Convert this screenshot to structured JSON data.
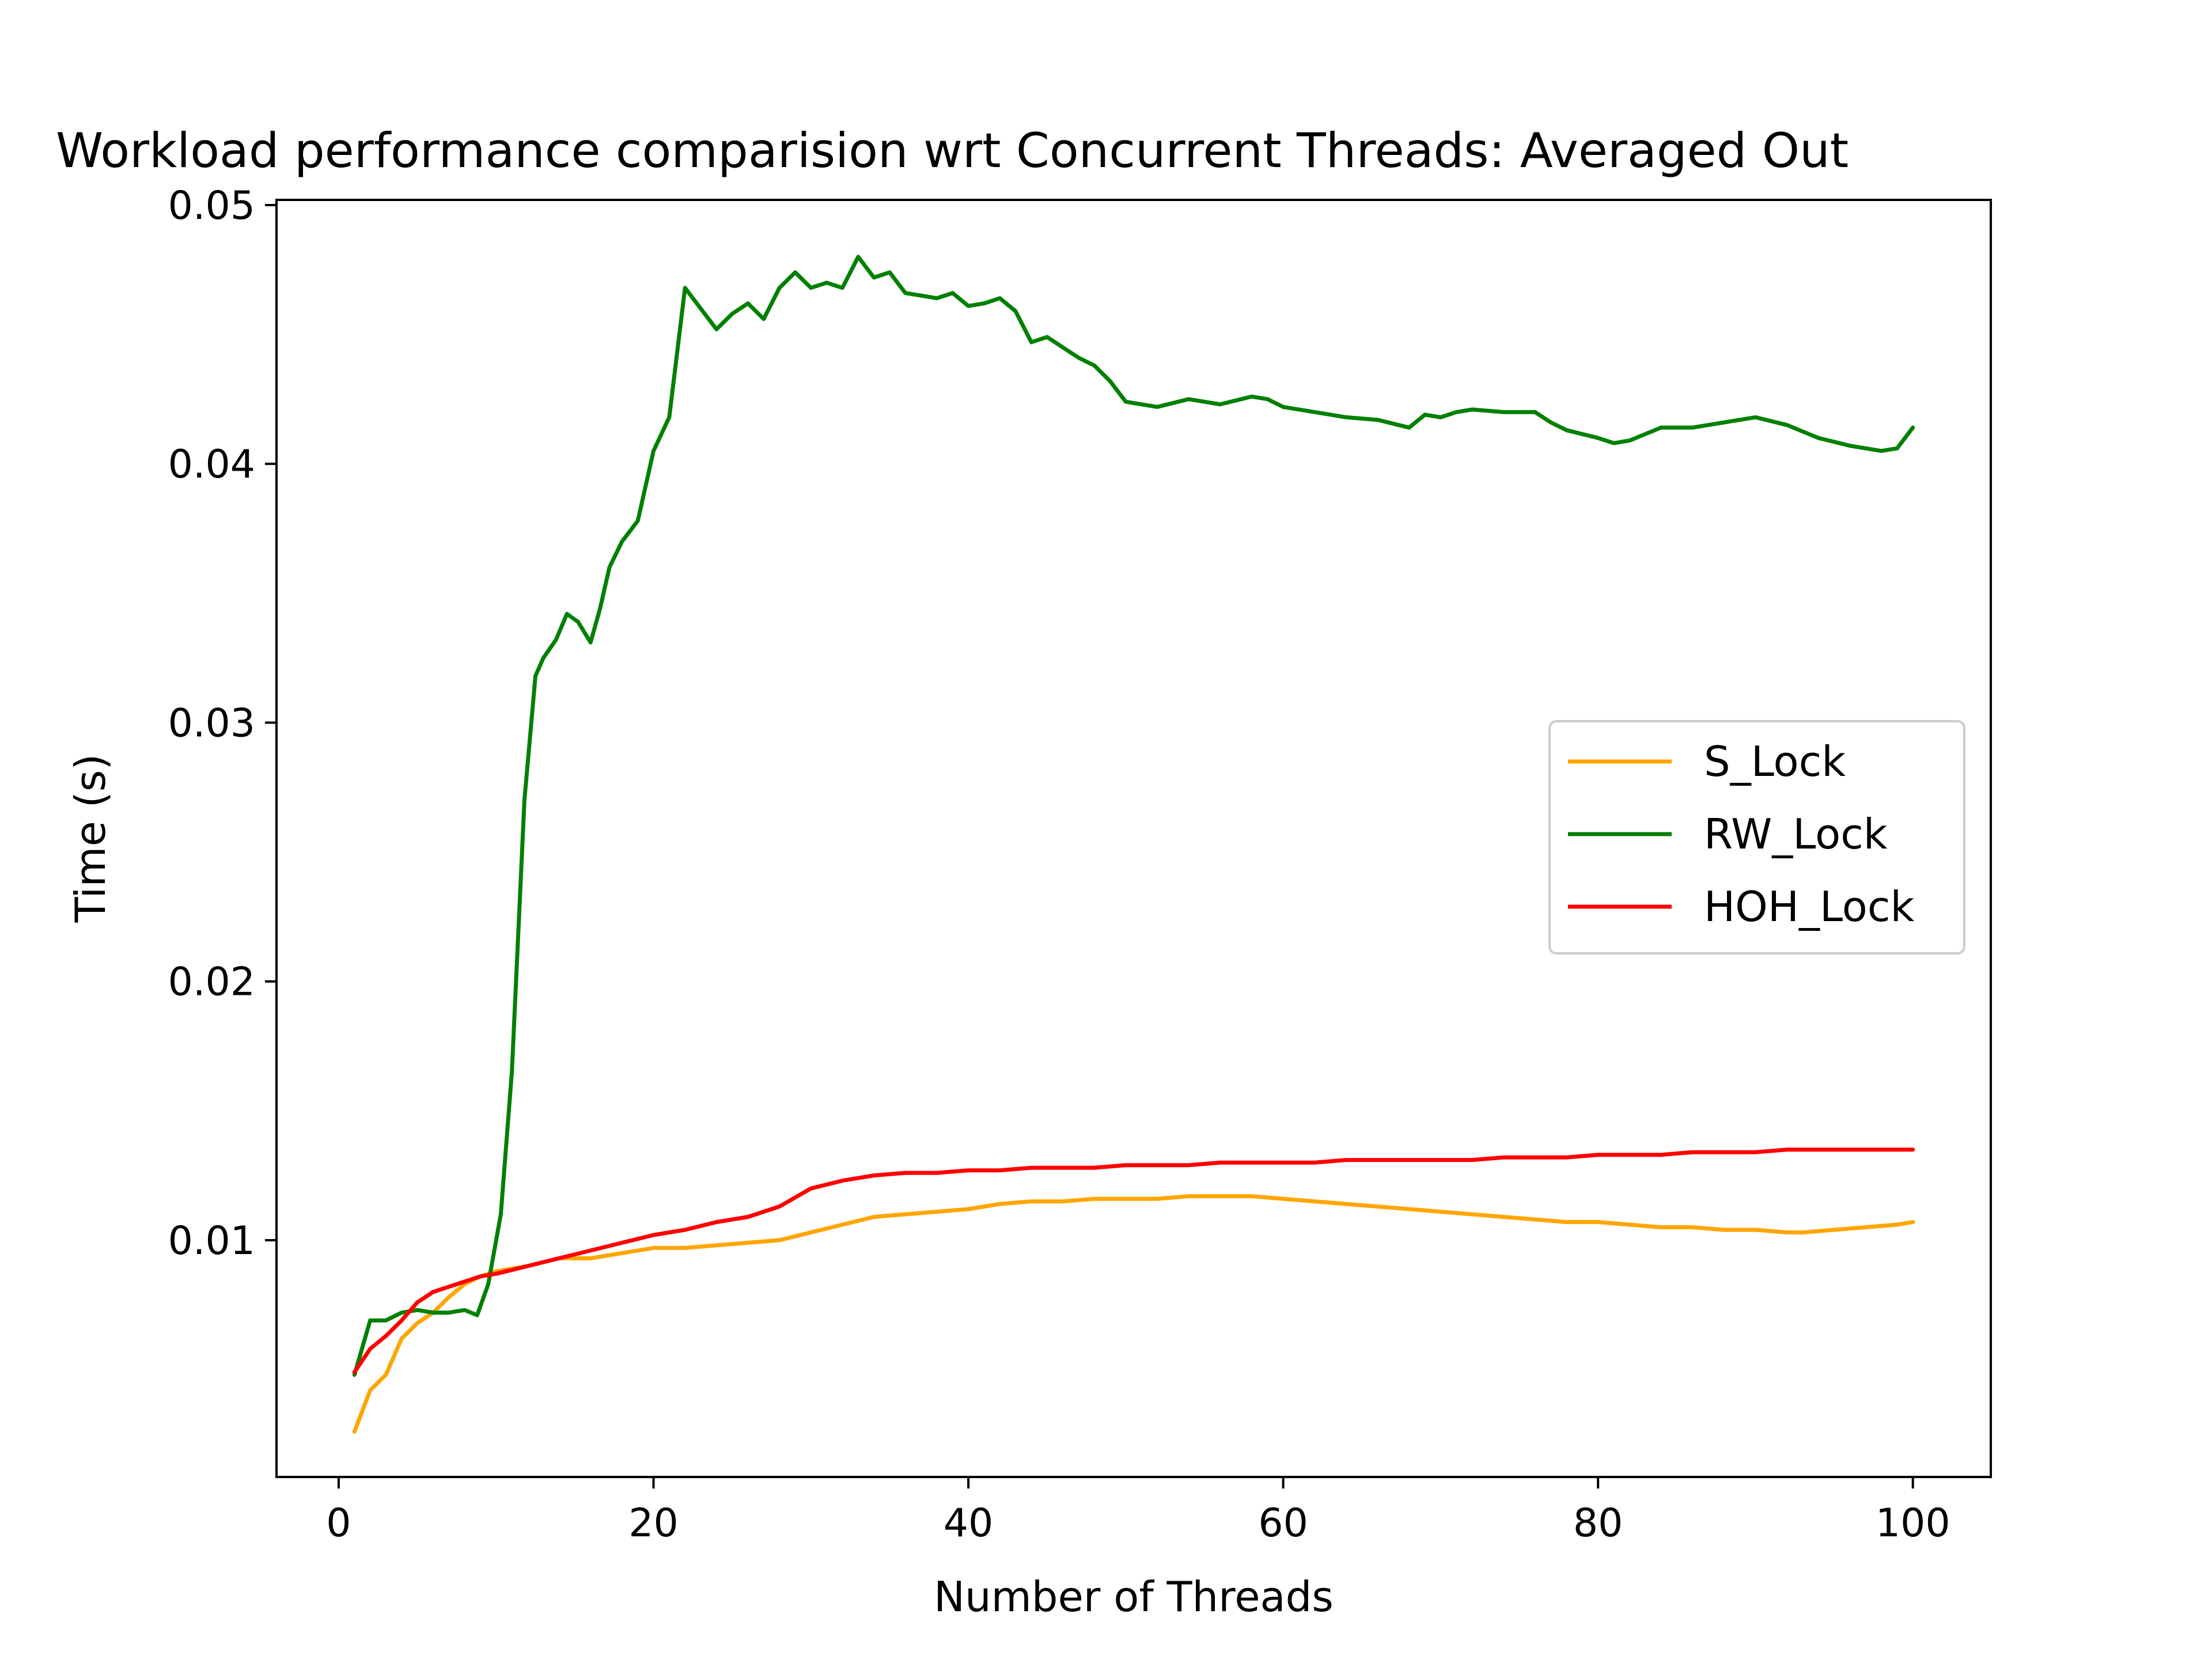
{
  "chart_data": {
    "type": "line",
    "title": "Workload performance comparision wrt Concurrent Threads: Averaged Out",
    "xlabel": "Number of Threads",
    "ylabel": "Time (s)",
    "xlim": [
      -3.95,
      104.95
    ],
    "ylim": [
      0.00085,
      0.0502
    ],
    "x_ticks": [
      0,
      20,
      40,
      60,
      80,
      100
    ],
    "x_tick_labels": [
      "0",
      "20",
      "40",
      "60",
      "80",
      "100"
    ],
    "y_ticks": [
      0.01,
      0.02,
      0.03,
      0.04,
      0.05
    ],
    "y_tick_labels": [
      "0.01",
      "0.02",
      "0.03",
      "0.04",
      "0.05"
    ],
    "grid": false,
    "legend_position": "center-right",
    "series": [
      {
        "name": "S_Lock",
        "color": "#ffa500",
        "x": [
          1,
          2,
          3,
          4,
          5,
          6,
          7,
          8,
          9,
          10,
          12,
          14,
          16,
          18,
          20,
          22,
          24,
          26,
          28,
          30,
          32,
          34,
          36,
          38,
          40,
          42,
          44,
          46,
          48,
          50,
          52,
          54,
          56,
          58,
          60,
          62,
          64,
          66,
          68,
          70,
          72,
          74,
          76,
          78,
          80,
          82,
          84,
          86,
          88,
          90,
          92,
          93,
          95,
          97,
          99,
          100
        ],
        "y": [
          0.0026,
          0.0042,
          0.0048,
          0.0062,
          0.0068,
          0.0072,
          0.0078,
          0.0083,
          0.0086,
          0.0088,
          0.009,
          0.0093,
          0.0093,
          0.0095,
          0.0097,
          0.0097,
          0.0098,
          0.0099,
          0.01,
          0.0103,
          0.0106,
          0.0109,
          0.011,
          0.0111,
          0.0112,
          0.0114,
          0.0115,
          0.0115,
          0.0116,
          0.0116,
          0.0116,
          0.0117,
          0.0117,
          0.0117,
          0.0116,
          0.0115,
          0.0114,
          0.0113,
          0.0112,
          0.0111,
          0.011,
          0.0109,
          0.0108,
          0.0107,
          0.0107,
          0.0106,
          0.0105,
          0.0105,
          0.0104,
          0.0104,
          0.0103,
          0.0103,
          0.0104,
          0.0105,
          0.0106,
          0.0107
        ]
      },
      {
        "name": "RW_Lock",
        "color": "#008000",
        "x": [
          1,
          2,
          3,
          4,
          5,
          6,
          7,
          8,
          8.8,
          9.5,
          10.3,
          11,
          11.8,
          12.5,
          13,
          13.8,
          14.5,
          15.2,
          16,
          16.6,
          17.2,
          18,
          19,
          20,
          21,
          22,
          23,
          24,
          25,
          26,
          27,
          28,
          29,
          30,
          31,
          32,
          33,
          34,
          35,
          36,
          37,
          38,
          39,
          40,
          41,
          42,
          43,
          44,
          45,
          46,
          47,
          48,
          49,
          50,
          52,
          54,
          56,
          58,
          59,
          60,
          62,
          64,
          66,
          68,
          69,
          70,
          71,
          72,
          74,
          76,
          77,
          78,
          80,
          81,
          82,
          84,
          86,
          88,
          90,
          92,
          94,
          96,
          98,
          99,
          100
        ],
        "y": [
          0.0048,
          0.0069,
          0.0069,
          0.0072,
          0.0073,
          0.0072,
          0.0072,
          0.0073,
          0.0071,
          0.0083,
          0.011,
          0.0165,
          0.027,
          0.0318,
          0.0325,
          0.0332,
          0.0342,
          0.0339,
          0.0331,
          0.0344,
          0.036,
          0.037,
          0.0378,
          0.0405,
          0.0418,
          0.0468,
          0.046,
          0.0452,
          0.0458,
          0.0462,
          0.0456,
          0.0468,
          0.0474,
          0.0468,
          0.047,
          0.0468,
          0.048,
          0.0472,
          0.0474,
          0.0466,
          0.0465,
          0.0464,
          0.0466,
          0.0461,
          0.0462,
          0.0464,
          0.0459,
          0.0447,
          0.0449,
          0.0445,
          0.0441,
          0.0438,
          0.0432,
          0.0424,
          0.0422,
          0.0425,
          0.0423,
          0.0426,
          0.0425,
          0.0422,
          0.042,
          0.0418,
          0.0417,
          0.0414,
          0.0419,
          0.0418,
          0.042,
          0.0421,
          0.042,
          0.042,
          0.0416,
          0.0413,
          0.041,
          0.0408,
          0.0409,
          0.0414,
          0.0414,
          0.0416,
          0.0418,
          0.0415,
          0.041,
          0.0407,
          0.0405,
          0.0406,
          0.0414
        ]
      },
      {
        "name": "HOH_Lock",
        "color": "#ff0000",
        "x": [
          1,
          2,
          3,
          4,
          5,
          6,
          7,
          8,
          9,
          10,
          12,
          14,
          16,
          18,
          20,
          22,
          24,
          26,
          28,
          30,
          32,
          34,
          36,
          38,
          40,
          42,
          44,
          46,
          48,
          50,
          52,
          54,
          56,
          58,
          60,
          62,
          64,
          66,
          68,
          70,
          72,
          74,
          76,
          78,
          80,
          82,
          84,
          86,
          88,
          90,
          92,
          94,
          96,
          98,
          100
        ],
        "y": [
          0.0049,
          0.0058,
          0.0063,
          0.0069,
          0.0076,
          0.008,
          0.0082,
          0.0084,
          0.0086,
          0.0087,
          0.009,
          0.0093,
          0.0096,
          0.0099,
          0.0102,
          0.0104,
          0.0107,
          0.0109,
          0.0113,
          0.012,
          0.0123,
          0.0125,
          0.0126,
          0.0126,
          0.0127,
          0.0127,
          0.0128,
          0.0128,
          0.0128,
          0.0129,
          0.0129,
          0.0129,
          0.013,
          0.013,
          0.013,
          0.013,
          0.0131,
          0.0131,
          0.0131,
          0.0131,
          0.0131,
          0.0132,
          0.0132,
          0.0132,
          0.0133,
          0.0133,
          0.0133,
          0.0134,
          0.0134,
          0.0134,
          0.0135,
          0.0135,
          0.0135,
          0.0135,
          0.0135
        ]
      }
    ]
  }
}
